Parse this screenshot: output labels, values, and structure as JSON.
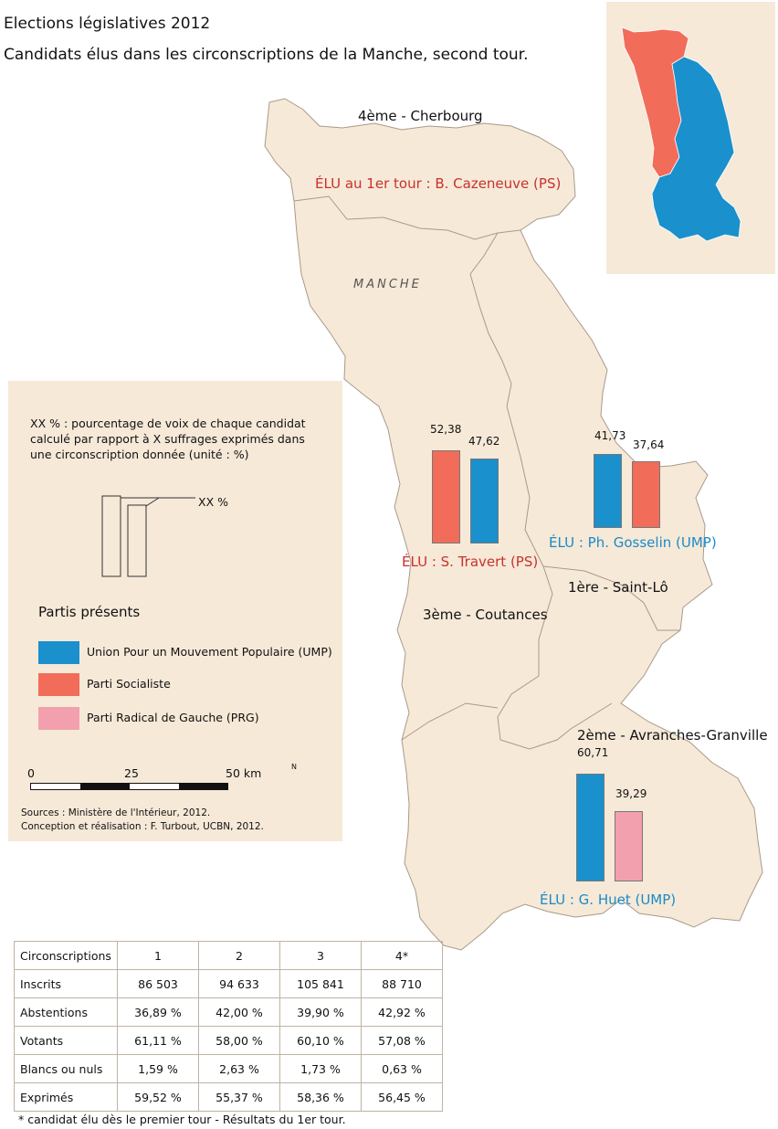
{
  "title": "Elections législatives 2012",
  "subtitle": "Candidats élus dans les circonscriptions de la Manche, second tour.",
  "map": {
    "department_label": "MANCHE",
    "colors": {
      "ump": "#1a90cc",
      "ps": "#f26c5a",
      "prg": "#f2a0ae",
      "land": "#f6e9d8"
    },
    "circonscriptions": [
      {
        "name": "4ème - Cherbourg",
        "elu": "ÉLU au 1er tour : B. Cazeneuve (PS)",
        "party": "PS",
        "bars": []
      },
      {
        "name": "3ème - Coutances",
        "elu": "ÉLU : S. Travert (PS)",
        "party": "PS",
        "bars": [
          {
            "label": "52,38",
            "value": 52.38,
            "party": "PS"
          },
          {
            "label": "47,62",
            "value": 47.62,
            "party": "UMP"
          }
        ]
      },
      {
        "name": "1ère - Saint-Lô",
        "elu": "ÉLU : Ph. Gosselin (UMP)",
        "party": "UMP",
        "bars": [
          {
            "label": "41,73",
            "value": 41.73,
            "party": "UMP"
          },
          {
            "label": "37,64",
            "value": 37.64,
            "party": "PS"
          }
        ]
      },
      {
        "name": "2ème - Avranches-Granville",
        "elu": "ÉLU : G. Huet (UMP)",
        "party": "UMP",
        "bars": [
          {
            "label": "60,71",
            "value": 60.71,
            "party": "UMP"
          },
          {
            "label": "39,29",
            "value": 39.29,
            "party": "PRG"
          }
        ]
      }
    ]
  },
  "legend": {
    "desc_lines": [
      "XX % : pourcentage de voix de chaque candidat",
      "calculé par rapport à X suffrages exprimés dans",
      "une circonscription donnée (unité : %)"
    ],
    "example_label": "XX %",
    "parties_title": "Partis présents",
    "parties": [
      {
        "label": "Union Pour un Mouvement Populaire (UMP)",
        "color": "#1a90cc"
      },
      {
        "label": "Parti Socialiste",
        "color": "#f26c5a"
      },
      {
        "label": "Parti Radical de Gauche (PRG)",
        "color": "#f2a0ae"
      }
    ],
    "scale_labels": [
      "0",
      "25",
      "50 km"
    ],
    "north": "N",
    "sources": [
      "Sources : Ministère de l'Intérieur, 2012.",
      "Conception et réalisation : F. Turbout, UCBN, 2012."
    ]
  },
  "table": {
    "headers": [
      "Circonscriptions",
      "1",
      "2",
      "3",
      "4*"
    ],
    "rows": [
      [
        "Inscrits",
        "86 503",
        "94 633",
        "105 841",
        "88 710"
      ],
      [
        "Abstentions",
        "36,89 %",
        "42,00 %",
        "39,90 %",
        "42,92 %"
      ],
      [
        "Votants",
        "61,11 %",
        "58,00 %",
        "60,10 %",
        "57,08 %"
      ],
      [
        "Blancs ou nuls",
        "1,59 %",
        "2,63 %",
        "1,73 %",
        "0,63 %"
      ],
      [
        "Exprimés",
        "59,52 %",
        "55,37 %",
        "58,36 %",
        "56,45 %"
      ]
    ]
  },
  "footnote": "* candidat élu dès le premier tour - Résultats du 1er tour."
}
